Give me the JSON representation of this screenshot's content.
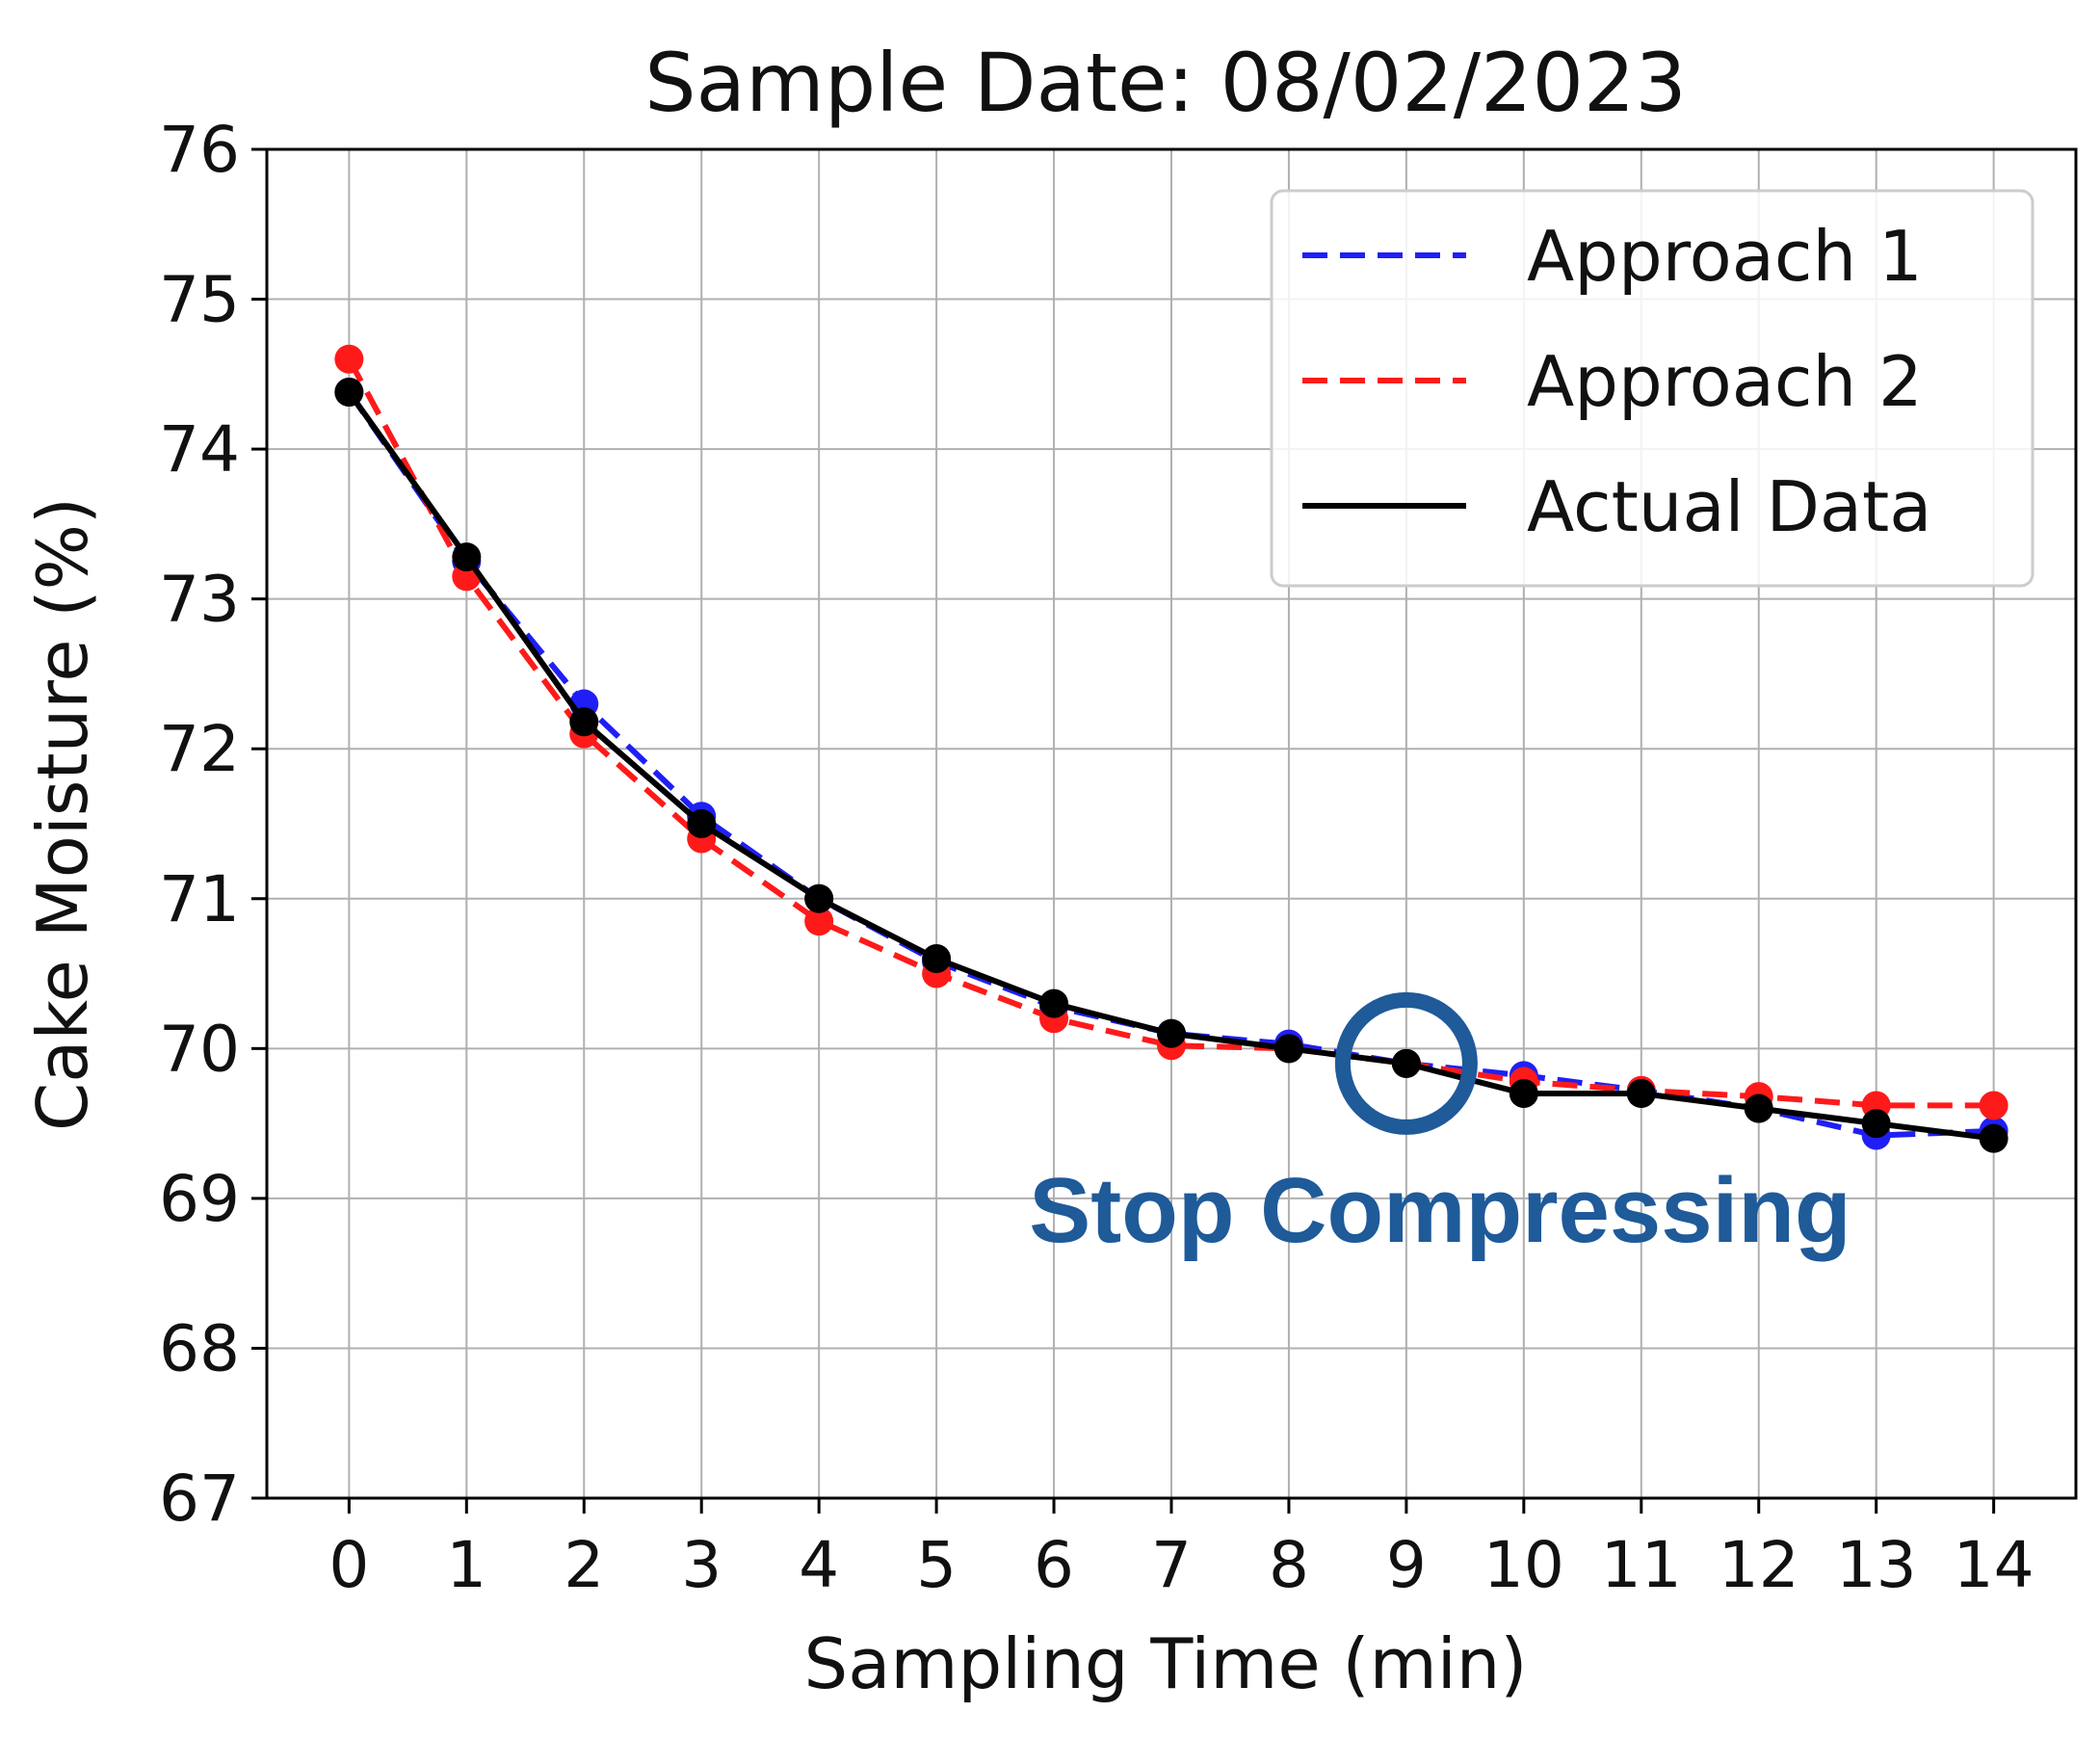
{
  "chart_data": {
    "type": "line",
    "title": "Sample Date: 08/02/2023",
    "xlabel": "Sampling Time (min)",
    "ylabel": "Cake Moisture (%)",
    "xlim": [
      -0.7,
      14.7
    ],
    "ylim": [
      67,
      76
    ],
    "grid": true,
    "legend_position": "top-right",
    "xticks": [
      "0",
      "1",
      "2",
      "3",
      "4",
      "5",
      "6",
      "7",
      "8",
      "9",
      "10",
      "11",
      "12",
      "13",
      "14"
    ],
    "yticks": [
      "67",
      "68",
      "69",
      "70",
      "71",
      "72",
      "73",
      "74",
      "75",
      "76"
    ],
    "x": [
      0,
      1,
      2,
      3,
      4,
      5,
      6,
      7,
      8,
      9,
      10,
      11,
      12,
      13,
      14
    ],
    "series": [
      {
        "name": "Approach 1",
        "color": "#1f1ff5",
        "style": "dashed",
        "values": [
          74.38,
          73.25,
          72.3,
          71.55,
          71.0,
          70.58,
          70.28,
          70.1,
          70.03,
          69.9,
          69.82,
          69.72,
          69.6,
          69.42,
          69.45
        ]
      },
      {
        "name": "Approach 2",
        "color": "#ff1a1a",
        "style": "dashed",
        "values": [
          74.6,
          73.15,
          72.1,
          71.4,
          70.85,
          70.5,
          70.2,
          70.02,
          70.0,
          69.9,
          69.78,
          69.72,
          69.68,
          69.62,
          69.62
        ]
      },
      {
        "name": "Actual Data",
        "color": "#000000",
        "style": "solid",
        "values": [
          74.38,
          73.28,
          72.18,
          71.5,
          71.0,
          70.6,
          70.3,
          70.1,
          70.0,
          69.9,
          69.7,
          69.7,
          69.6,
          69.5,
          69.4
        ]
      }
    ],
    "annotations": [
      {
        "text": "Stop Compressing",
        "x": 9,
        "y": 69.9,
        "color": "#1f5a99",
        "marker": "circle"
      }
    ]
  }
}
